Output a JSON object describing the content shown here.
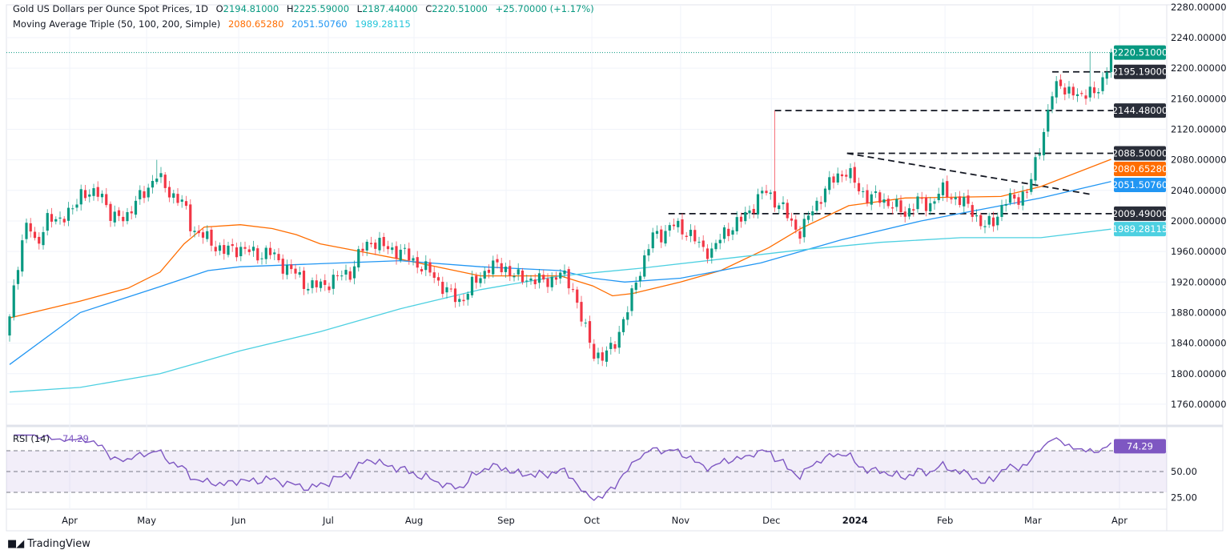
{
  "header": {
    "title": "Gold US Dollars per Ounce Spot Prices, 1D",
    "open_label": "O",
    "open": "2194.81000",
    "high_label": "H",
    "high": "2225.59000",
    "low_label": "L",
    "low": "2187.44000",
    "close_label": "C",
    "close": "2220.51000",
    "change": "+25.70000 (+1.17%)",
    "ma_title": "Moving Average Triple (50, 100, 200, Simple)",
    "ma50": "2080.65280",
    "ma100": "2051.50760",
    "ma200": "1989.28115"
  },
  "colors": {
    "up": "#089981",
    "down": "#f23645",
    "ma50": "#ff6d00",
    "ma100": "#2196f3",
    "ma200": "#4dd0e1",
    "rsi": "#7e57c2",
    "level": "#2a2e39"
  },
  "footer": {
    "brand": "TradingView"
  },
  "chart_data": {
    "type": "candlestick",
    "title": "Gold US Dollars per Ounce Spot Prices, 1D",
    "bars": 263,
    "ylim": [
      1740,
      2290
    ],
    "y_ticks": [
      "2280.00000",
      "2240.00000",
      "2200.00000",
      "2160.00000",
      "2120.00000",
      "2080.00000",
      "2040.00000",
      "2000.00000",
      "1960.00000",
      "1920.00000",
      "1880.00000",
      "1840.00000",
      "1800.00000",
      "1760.00000"
    ],
    "x_ticks": [
      {
        "bar": 14.3,
        "label": "Apr"
      },
      {
        "bar": 32.6,
        "label": "May"
      },
      {
        "bar": 54.5,
        "label": "Jun"
      },
      {
        "bar": 75.8,
        "label": "Jul"
      },
      {
        "bar": 96.2,
        "label": "Aug"
      },
      {
        "bar": 118.1,
        "label": "Sep"
      },
      {
        "bar": 138.5,
        "label": "Oct"
      },
      {
        "bar": 159.6,
        "label": "Nov"
      },
      {
        "bar": 181.2,
        "label": "Dec"
      },
      {
        "bar": 201.1,
        "label": "2024",
        "bold": true
      },
      {
        "bar": 222.5,
        "label": "Feb"
      },
      {
        "bar": 243.4,
        "label": "Mar"
      },
      {
        "bar": 264.0,
        "label": "Apr"
      }
    ],
    "close_waypoints": [
      [
        0,
        1875
      ],
      [
        1.5,
        1935
      ],
      [
        4.4,
        2000
      ],
      [
        6.3,
        1970
      ],
      [
        9.1,
        2000
      ],
      [
        14.9,
        2010
      ],
      [
        16.8,
        2040
      ],
      [
        20.6,
        2030
      ],
      [
        21.5,
        2045
      ],
      [
        24.4,
        2000
      ],
      [
        28.2,
        2010
      ],
      [
        33,
        2045
      ],
      [
        34.9,
        2060
      ],
      [
        36.8,
        2045
      ],
      [
        38.7,
        2035
      ],
      [
        41.5,
        2020
      ],
      [
        43.4,
        1990
      ],
      [
        47.2,
        1975
      ],
      [
        51,
        1960
      ],
      [
        54.9,
        1965
      ],
      [
        58.7,
        1955
      ],
      [
        61.5,
        1960
      ],
      [
        64.4,
        1945
      ],
      [
        68.2,
        1930
      ],
      [
        71,
        1915
      ],
      [
        74,
        1915
      ],
      [
        77.7,
        1925
      ],
      [
        81.5,
        1935
      ],
      [
        83.4,
        1960
      ],
      [
        86.3,
        1975
      ],
      [
        89.1,
        1965
      ],
      [
        93,
        1960
      ],
      [
        96.8,
        1945
      ],
      [
        100.6,
        1930
      ],
      [
        104.4,
        1905
      ],
      [
        107.2,
        1895
      ],
      [
        110,
        1915
      ],
      [
        113.9,
        1940
      ],
      [
        117.7,
        1940
      ],
      [
        120.6,
        1925
      ],
      [
        123.4,
        1925
      ],
      [
        127.2,
        1920
      ],
      [
        131,
        1930
      ],
      [
        133.9,
        1915
      ],
      [
        135.8,
        1875
      ],
      [
        138.7,
        1830
      ],
      [
        141,
        1820
      ],
      [
        143.4,
        1835
      ],
      [
        145.3,
        1860
      ],
      [
        147.2,
        1885
      ],
      [
        149.1,
        1925
      ],
      [
        151,
        1950
      ],
      [
        153,
        1980
      ],
      [
        155.8,
        1985
      ],
      [
        157.7,
        1995
      ],
      [
        161.5,
        1985
      ],
      [
        164.4,
        1965
      ],
      [
        167.2,
        1960
      ],
      [
        170,
        1985
      ],
      [
        173.9,
        2000
      ],
      [
        176.8,
        2020
      ],
      [
        179.6,
        2040
      ],
      [
        181.5,
        2030
      ],
      [
        183.4,
        2020
      ],
      [
        186.3,
        1995
      ],
      [
        188.2,
        1985
      ],
      [
        191,
        2015
      ],
      [
        193.9,
        2040
      ],
      [
        196.8,
        2060
      ],
      [
        199.2,
        2065
      ],
      [
        201.5,
        2045
      ],
      [
        204.4,
        2030
      ],
      [
        207.2,
        2030
      ],
      [
        210,
        2020
      ],
      [
        213,
        2010
      ],
      [
        215.8,
        2025
      ],
      [
        218.7,
        2020
      ],
      [
        221.5,
        2040
      ],
      [
        223.4,
        2035
      ],
      [
        226.3,
        2025
      ],
      [
        229,
        2015
      ],
      [
        231.6,
        1990
      ],
      [
        233.9,
        2000
      ],
      [
        236.8,
        2025
      ],
      [
        239.6,
        2030
      ],
      [
        242.5,
        2040
      ],
      [
        244.4,
        2085
      ],
      [
        246.3,
        2125
      ],
      [
        248.2,
        2170
      ],
      [
        250.1,
        2180
      ],
      [
        253,
        2165
      ],
      [
        254.9,
        2160
      ],
      [
        256.8,
        2180
      ],
      [
        257.7,
        2160
      ],
      [
        259.6,
        2175
      ],
      [
        261,
        2194.81
      ],
      [
        262,
        2220.51
      ]
    ],
    "candle_overrides": [
      {
        "bar": 35,
        "high": 2080
      },
      {
        "bar": 182,
        "high": 2144.48
      },
      {
        "bar": 141,
        "low": 1810
      },
      {
        "bar": 257,
        "high": 2222
      },
      {
        "bar": 262,
        "open": 2194.81,
        "high": 2225.59,
        "low": 2187.44,
        "close": 2220.51
      }
    ],
    "moving_averages": [
      {
        "name": "MA50",
        "color_key": "ma50",
        "last": "2080.65280",
        "points": [
          [
            0,
            1873
          ],
          [
            16.8,
            1895
          ],
          [
            28.2,
            1912
          ],
          [
            35.8,
            1933
          ],
          [
            41.5,
            1970
          ],
          [
            46.3,
            1992
          ],
          [
            54.9,
            1995
          ],
          [
            62.5,
            1990
          ],
          [
            68.2,
            1982
          ],
          [
            73.9,
            1970
          ],
          [
            83.4,
            1960
          ],
          [
            92.9,
            1950
          ],
          [
            112,
            1928
          ],
          [
            131,
            1928
          ],
          [
            138.7,
            1915
          ],
          [
            143.4,
            1902
          ],
          [
            148.2,
            1905
          ],
          [
            159.6,
            1920
          ],
          [
            169.1,
            1935
          ],
          [
            180.6,
            1965
          ],
          [
            188.2,
            1990
          ],
          [
            199.6,
            2020
          ],
          [
            213,
            2030
          ],
          [
            235.8,
            2032
          ],
          [
            245.3,
            2045
          ],
          [
            262,
            2080.65
          ]
        ]
      },
      {
        "name": "MA100",
        "color_key": "ma100",
        "last": "2051.50760",
        "points": [
          [
            0,
            1812
          ],
          [
            16.8,
            1880
          ],
          [
            35.8,
            1914
          ],
          [
            47.2,
            1935
          ],
          [
            54.9,
            1940
          ],
          [
            73.9,
            1944
          ],
          [
            92.9,
            1948
          ],
          [
            112,
            1940
          ],
          [
            131,
            1935
          ],
          [
            138.7,
            1925
          ],
          [
            146.3,
            1920
          ],
          [
            159.6,
            1925
          ],
          [
            178.7,
            1945
          ],
          [
            197.7,
            1975
          ],
          [
            216.8,
            2000
          ],
          [
            235.8,
            2020
          ],
          [
            245.3,
            2030
          ],
          [
            262,
            2051.51
          ]
        ]
      },
      {
        "name": "MA200",
        "color_key": "ma200",
        "last": "1989.28115",
        "points": [
          [
            0,
            1776
          ],
          [
            16.8,
            1782
          ],
          [
            35.8,
            1800
          ],
          [
            54.9,
            1830
          ],
          [
            73.9,
            1855
          ],
          [
            92.9,
            1885
          ],
          [
            112,
            1910
          ],
          [
            131,
            1928
          ],
          [
            150,
            1938
          ],
          [
            169.1,
            1950
          ],
          [
            188.2,
            1962
          ],
          [
            207.2,
            1972
          ],
          [
            226.3,
            1978
          ],
          [
            245.3,
            1978
          ],
          [
            262,
            1989.28
          ]
        ]
      }
    ],
    "levels": [
      {
        "price": 2195.19,
        "from_bar": 248,
        "label": "2195.19000"
      },
      {
        "price": 2144.48,
        "from_bar": 182,
        "label": "2144.48000"
      },
      {
        "price": 2088.5,
        "from_bar": 199.2,
        "label": "2088.50000"
      },
      {
        "price": 2009.49,
        "from_bar": 156.7,
        "label": "2009.49000"
      }
    ],
    "trendline": {
      "from": [
        199.2,
        2088.5
      ],
      "to": [
        257,
        2035
      ]
    },
    "last_price_label": "2220.51000",
    "rsi": {
      "title": "RSI (14)",
      "period": 14,
      "value": "74.29",
      "levels": [
        70,
        50,
        30
      ],
      "tick_labels": [
        "50.00",
        "25.00"
      ]
    }
  }
}
